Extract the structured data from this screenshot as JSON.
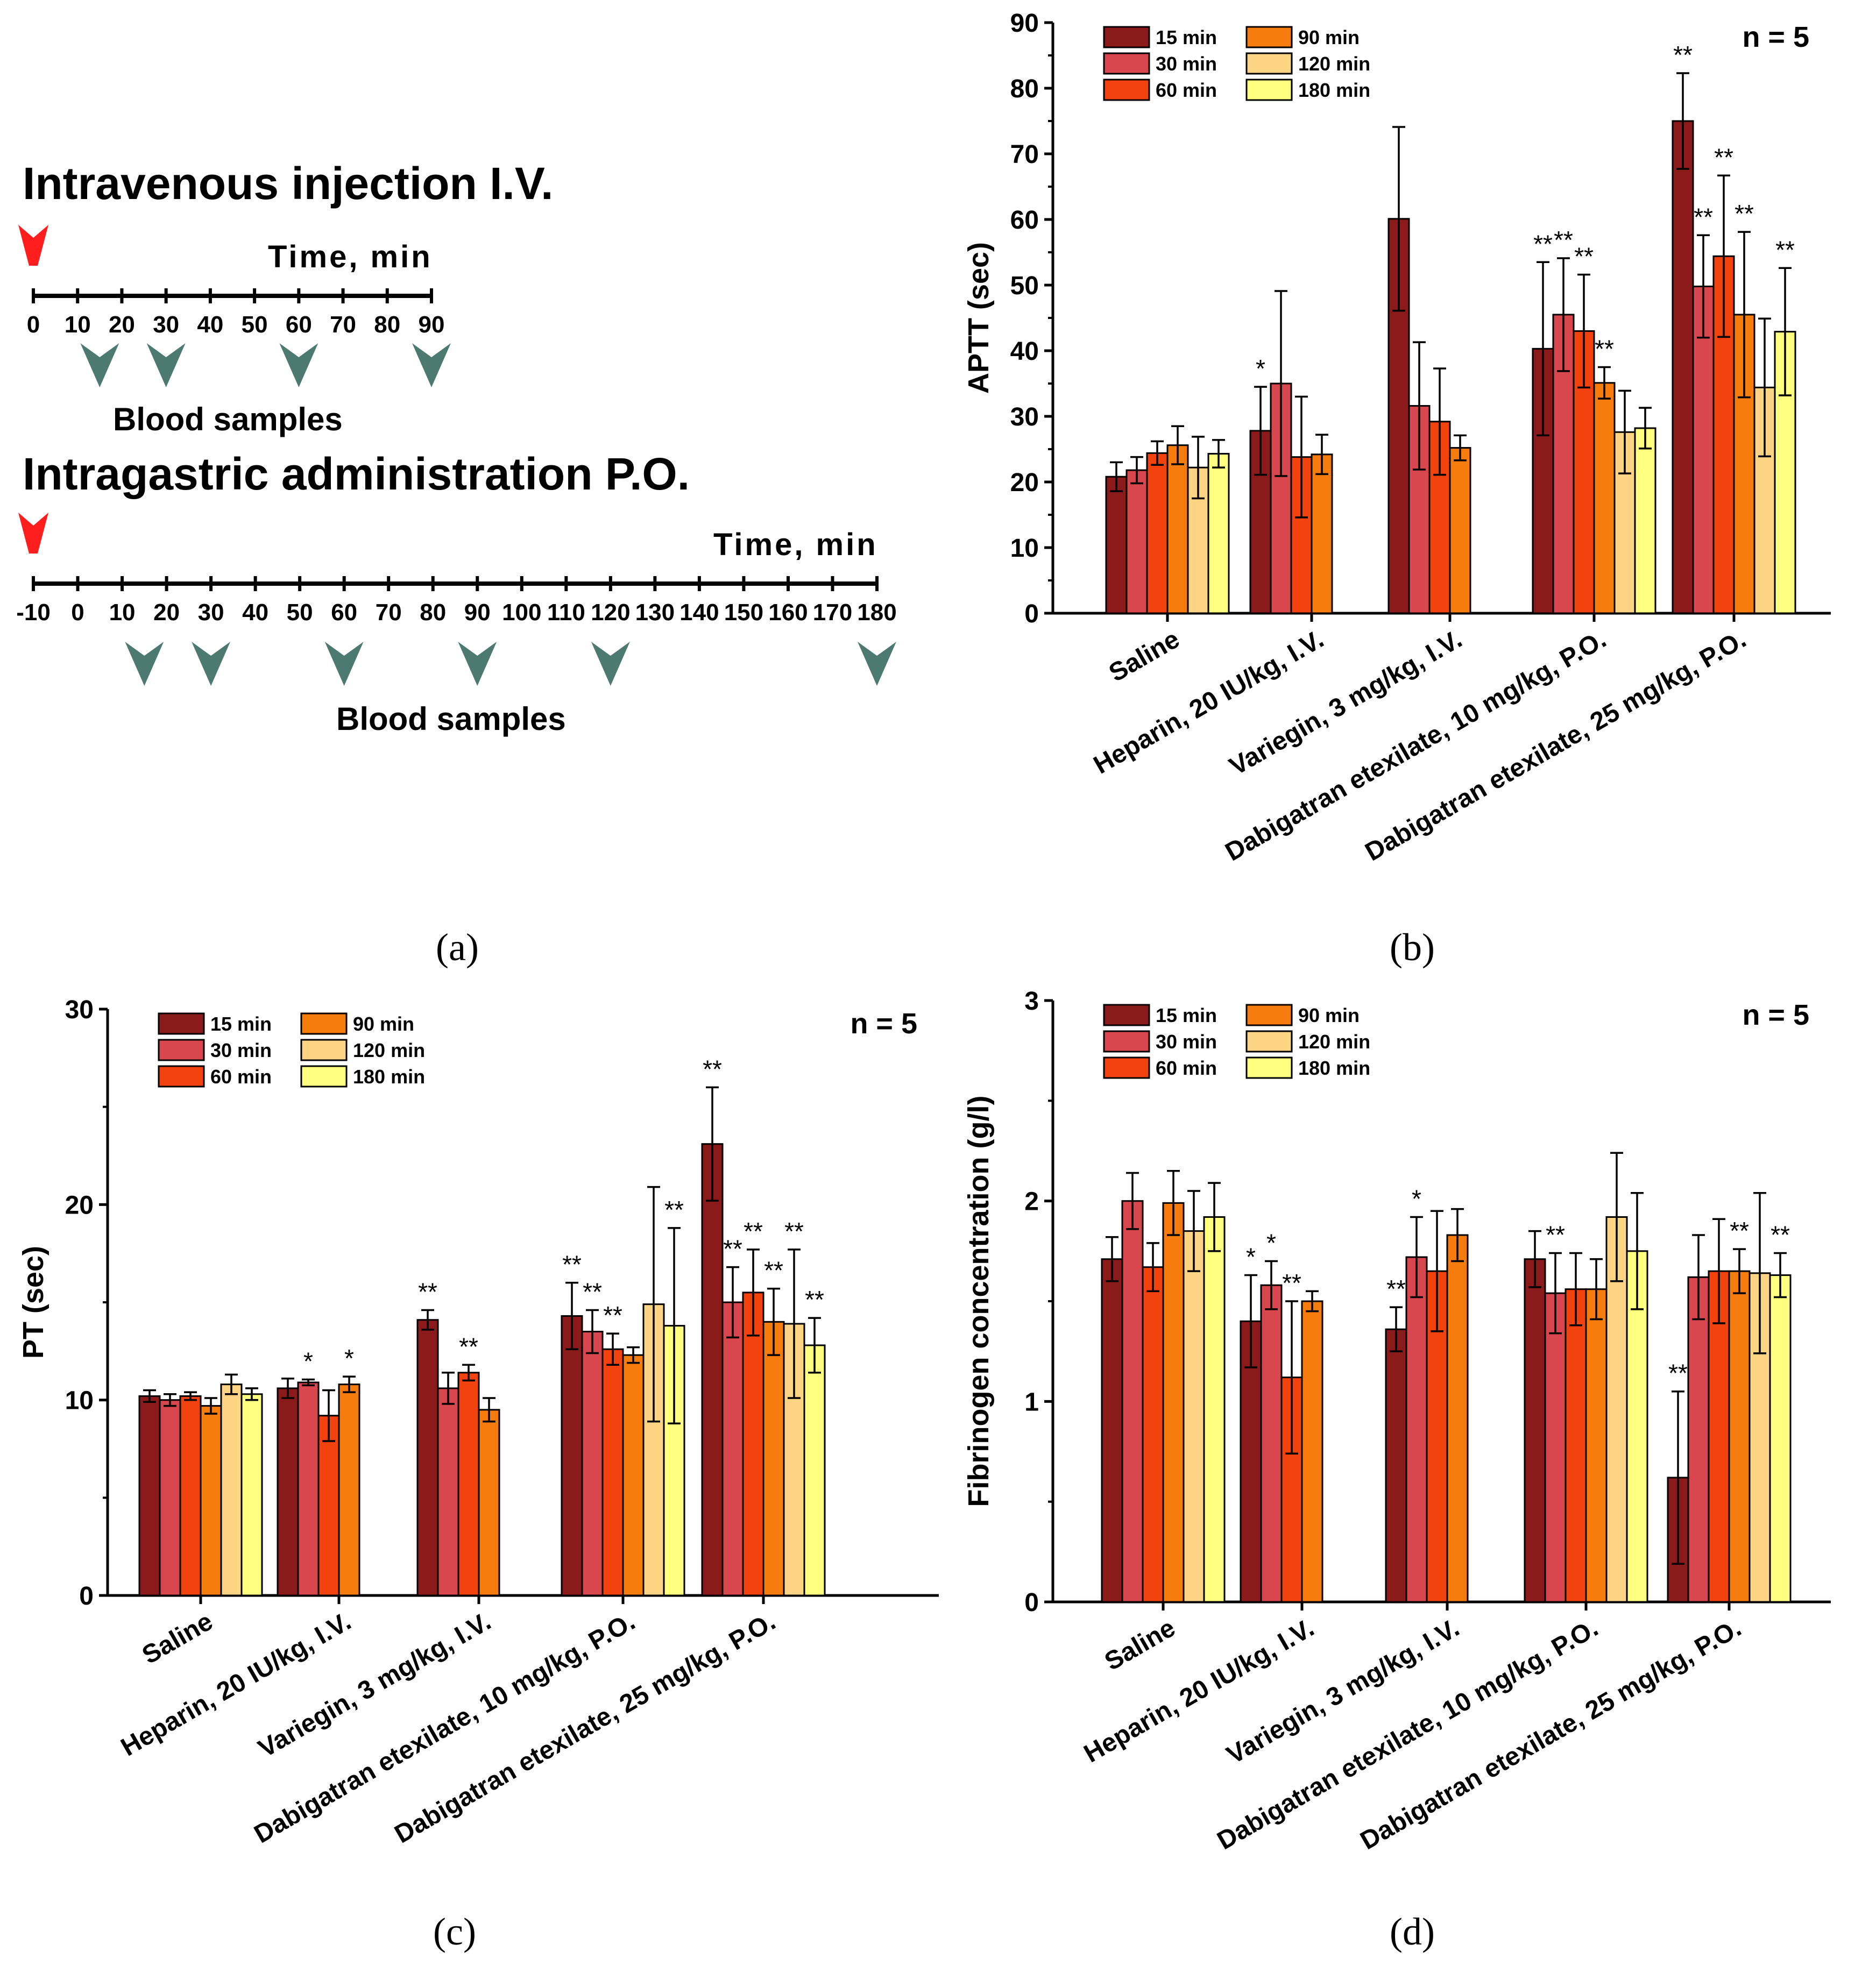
{
  "colors": {
    "15 min": "#8b1a1a",
    "30 min": "#d9474e",
    "60 min": "#f2430f",
    "90 min": "#f57c0d",
    "120 min": "#fdd483",
    "180 min": "#ffff80",
    "arrow_red": "#ff1e1e",
    "arrow_grey": "#4d7a70",
    "axis": "#000000"
  },
  "panel_a": {
    "label": "(a)",
    "iv": {
      "title": "Intravenous injection I.V.",
      "time_label": "Time, min",
      "ticks": [
        "0",
        "10",
        "20",
        "30",
        "40",
        "50",
        "60",
        "70",
        "80",
        "90"
      ],
      "sample_times": [
        15,
        30,
        60,
        90
      ],
      "samples_label": "Blood samples"
    },
    "po": {
      "title": "Intragastric administration P.O.",
      "time_label": "Time, min",
      "ticks": [
        "-10",
        "0",
        "10",
        "20",
        "30",
        "40",
        "50",
        "60",
        "70",
        "80",
        "90",
        "100",
        "110",
        "120",
        "130",
        "140",
        "150",
        "160",
        "170",
        "180"
      ],
      "sample_times": [
        15,
        30,
        60,
        90,
        120,
        180
      ],
      "samples_label": "Blood samples"
    }
  },
  "chart_data": [
    {
      "id": "b",
      "panel_label": "(b)",
      "type": "bar",
      "ylabel": "APTT (sec)",
      "ylim": [
        0,
        90
      ],
      "yticks": [
        "0",
        "10",
        "20",
        "30",
        "40",
        "50",
        "60",
        "70",
        "80",
        "90"
      ],
      "annotation": "n = 5",
      "legend": [
        "15 min",
        "30 min",
        "60 min",
        "90 min",
        "120 min",
        "180 min"
      ],
      "categories": [
        "Saline",
        "Heparin, 20 IU/kg, I.V.",
        "Variegin, 3 mg/kg, I.V.",
        "Dabigatran etexilate, 10 mg/kg, P.O.",
        "Dabigatran etexilate, 25 mg/kg, P.O."
      ],
      "series": [
        {
          "name": "15 min",
          "values": [
            20.8,
            27.8,
            60.1,
            40.3,
            75.0
          ],
          "errors": [
            2.2,
            6.7,
            14.0,
            13.2,
            7.3
          ],
          "stars": [
            "",
            "*",
            "",
            "**",
            "**"
          ]
        },
        {
          "name": "30 min",
          "values": [
            21.8,
            35.0,
            31.6,
            45.5,
            49.8
          ],
          "errors": [
            2.0,
            14.1,
            9.7,
            8.6,
            7.8
          ],
          "stars": [
            "",
            "",
            "",
            "**",
            "**"
          ]
        },
        {
          "name": "60 min",
          "values": [
            24.4,
            23.8,
            29.2,
            43.0,
            54.4
          ],
          "errors": [
            1.8,
            9.2,
            8.1,
            8.6,
            12.3
          ],
          "stars": [
            "",
            "",
            "",
            "**",
            "**"
          ]
        },
        {
          "name": "90 min",
          "values": [
            25.6,
            24.2,
            25.2,
            35.1,
            45.5
          ],
          "errors": [
            2.9,
            3.0,
            1.9,
            2.4,
            12.6
          ],
          "stars": [
            "",
            "",
            "",
            "**",
            "**"
          ]
        },
        {
          "name": "120 min",
          "values": [
            22.2,
            null,
            null,
            27.6,
            34.4
          ],
          "errors": [
            4.7,
            null,
            null,
            6.3,
            10.5
          ],
          "stars": [
            "",
            "",
            "",
            "",
            ""
          ]
        },
        {
          "name": "180 min",
          "values": [
            24.3,
            null,
            null,
            28.2,
            42.9
          ],
          "errors": [
            2.1,
            null,
            null,
            3.1,
            9.7
          ],
          "stars": [
            "",
            "",
            "",
            "",
            "**"
          ]
        }
      ]
    },
    {
      "id": "c",
      "panel_label": "(c)",
      "type": "bar",
      "ylabel": "PT (sec)",
      "ylim": [
        0,
        30
      ],
      "yticks": [
        "0",
        "10",
        "20",
        "30"
      ],
      "annotation": "n = 5",
      "legend": [
        "15 min",
        "30 min",
        "60 min",
        "90 min",
        "120 min",
        "180 min"
      ],
      "categories": [
        "Saline",
        "Heparin, 20 IU/kg, I.V.",
        "Variegin, 3 mg/kg, I.V.",
        "Dabigatran etexilate, 10 mg/kg, P.O.",
        "Dabigatran etexilate, 25 mg/kg, P.O."
      ],
      "series": [
        {
          "name": "15 min",
          "values": [
            10.2,
            10.6,
            14.1,
            14.3,
            23.1
          ],
          "errors": [
            0.3,
            0.5,
            0.5,
            1.7,
            2.9
          ],
          "stars": [
            "",
            "",
            "**",
            "**",
            "**"
          ]
        },
        {
          "name": "30 min",
          "values": [
            10.0,
            10.9,
            10.6,
            13.5,
            15.0
          ],
          "errors": [
            0.3,
            0.15,
            0.8,
            1.1,
            1.8
          ],
          "stars": [
            "",
            "*",
            "",
            "**",
            "**"
          ]
        },
        {
          "name": "60 min",
          "values": [
            10.2,
            9.2,
            11.4,
            12.6,
            15.5
          ],
          "errors": [
            0.2,
            1.3,
            0.4,
            0.8,
            2.2
          ],
          "stars": [
            "",
            "",
            "**",
            "**",
            "**"
          ]
        },
        {
          "name": "90 min",
          "values": [
            9.7,
            10.8,
            9.5,
            12.3,
            14.0
          ],
          "errors": [
            0.4,
            0.4,
            0.6,
            0.4,
            1.7
          ],
          "stars": [
            "",
            "*",
            "",
            "",
            "**"
          ]
        },
        {
          "name": "120 min",
          "values": [
            10.8,
            null,
            null,
            14.9,
            13.9
          ],
          "errors": [
            0.5,
            null,
            null,
            6.0,
            3.8
          ],
          "stars": [
            "",
            "",
            "",
            "",
            "**"
          ]
        },
        {
          "name": "180 min",
          "values": [
            10.3,
            null,
            null,
            13.8,
            12.8
          ],
          "errors": [
            0.3,
            null,
            null,
            5.0,
            1.4
          ],
          "stars": [
            "",
            "",
            "",
            "**",
            "**"
          ]
        }
      ]
    },
    {
      "id": "d",
      "panel_label": "(d)",
      "type": "bar",
      "ylabel": "Fibrinogen concentration (g/l)",
      "ylim": [
        0,
        3
      ],
      "yticks": [
        "0",
        "1",
        "2",
        "3"
      ],
      "annotation": "n = 5",
      "legend": [
        "15 min",
        "30 min",
        "60 min",
        "90 min",
        "120 min",
        "180 min"
      ],
      "categories": [
        "Saline",
        "Heparin, 20 IU/kg, I.V.",
        "Variegin, 3 mg/kg, I.V.",
        "Dabigatran etexilate, 10 mg/kg, P.O.",
        "Dabigatran etexilate, 25 mg/kg, P.O."
      ],
      "series": [
        {
          "name": "15 min",
          "values": [
            1.71,
            1.4,
            1.36,
            1.71,
            0.62
          ],
          "errors": [
            0.11,
            0.23,
            0.11,
            0.14,
            0.43
          ],
          "stars": [
            "",
            "*",
            "**",
            "",
            "**"
          ]
        },
        {
          "name": "30 min",
          "values": [
            2.0,
            1.58,
            1.72,
            1.54,
            1.62
          ],
          "errors": [
            0.14,
            0.12,
            0.2,
            0.2,
            0.21
          ],
          "stars": [
            "",
            "*",
            "*",
            "**",
            ""
          ]
        },
        {
          "name": "60 min",
          "values": [
            1.67,
            1.12,
            1.65,
            1.56,
            1.65
          ],
          "errors": [
            0.12,
            0.38,
            0.3,
            0.18,
            0.26
          ],
          "stars": [
            "",
            "**",
            "",
            "",
            ""
          ]
        },
        {
          "name": "90 min",
          "values": [
            1.99,
            1.5,
            1.83,
            1.56,
            1.65
          ],
          "errors": [
            0.16,
            0.05,
            0.13,
            0.15,
            0.11
          ],
          "stars": [
            "",
            "",
            "",
            "",
            "**"
          ]
        },
        {
          "name": "120 min",
          "values": [
            1.85,
            null,
            null,
            1.92,
            1.64
          ],
          "errors": [
            0.2,
            null,
            null,
            0.32,
            0.4
          ],
          "stars": [
            "",
            "",
            "",
            "",
            ""
          ]
        },
        {
          "name": "180 min",
          "values": [
            1.92,
            null,
            null,
            1.75,
            1.63
          ],
          "errors": [
            0.17,
            null,
            null,
            0.29,
            0.11
          ],
          "stars": [
            "",
            "",
            "",
            "",
            "**"
          ]
        }
      ]
    }
  ]
}
